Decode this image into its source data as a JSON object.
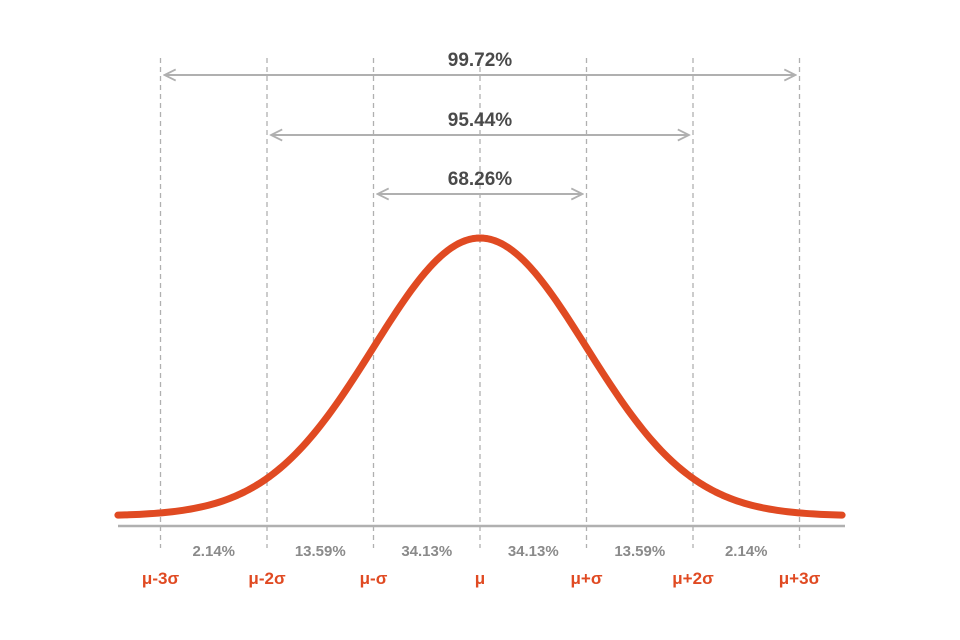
{
  "chart_data": {
    "type": "line",
    "x_ticks": [
      -3,
      -2,
      -1,
      0,
      1,
      2,
      3
    ],
    "tick_labels": [
      "μ-3σ",
      "μ-2σ",
      "μ-σ",
      "μ",
      "μ+σ",
      "μ+2σ",
      "μ+3σ"
    ],
    "segments": [
      {
        "from": -3,
        "to": -2,
        "label": "2.14%"
      },
      {
        "from": -2,
        "to": -1,
        "label": "13.59%"
      },
      {
        "from": -1,
        "to": 0,
        "label": "34.13%"
      },
      {
        "from": 0,
        "to": 1,
        "label": "34.13%"
      },
      {
        "from": 1,
        "to": 2,
        "label": "13.59%"
      },
      {
        "from": 2,
        "to": 3,
        "label": "2.14%"
      }
    ],
    "ranges": [
      {
        "from": -3,
        "to": 3,
        "label": "99.72%"
      },
      {
        "from": -2,
        "to": 2,
        "label": "95.44%"
      },
      {
        "from": -1,
        "to": 1,
        "label": "68.26%"
      }
    ],
    "series": [
      {
        "distribution": "normal",
        "mean": 0,
        "sd": 1
      }
    ],
    "xlim": [
      -3.4,
      3.4
    ],
    "grid": false,
    "colors": {
      "curve": "#e04a22",
      "tick_label": "#e04a22",
      "axis": "#b0b0b0",
      "guide": "#b0b0b0",
      "range_text": "#4a4a4a",
      "pct_text": "#8a8a8a"
    }
  }
}
